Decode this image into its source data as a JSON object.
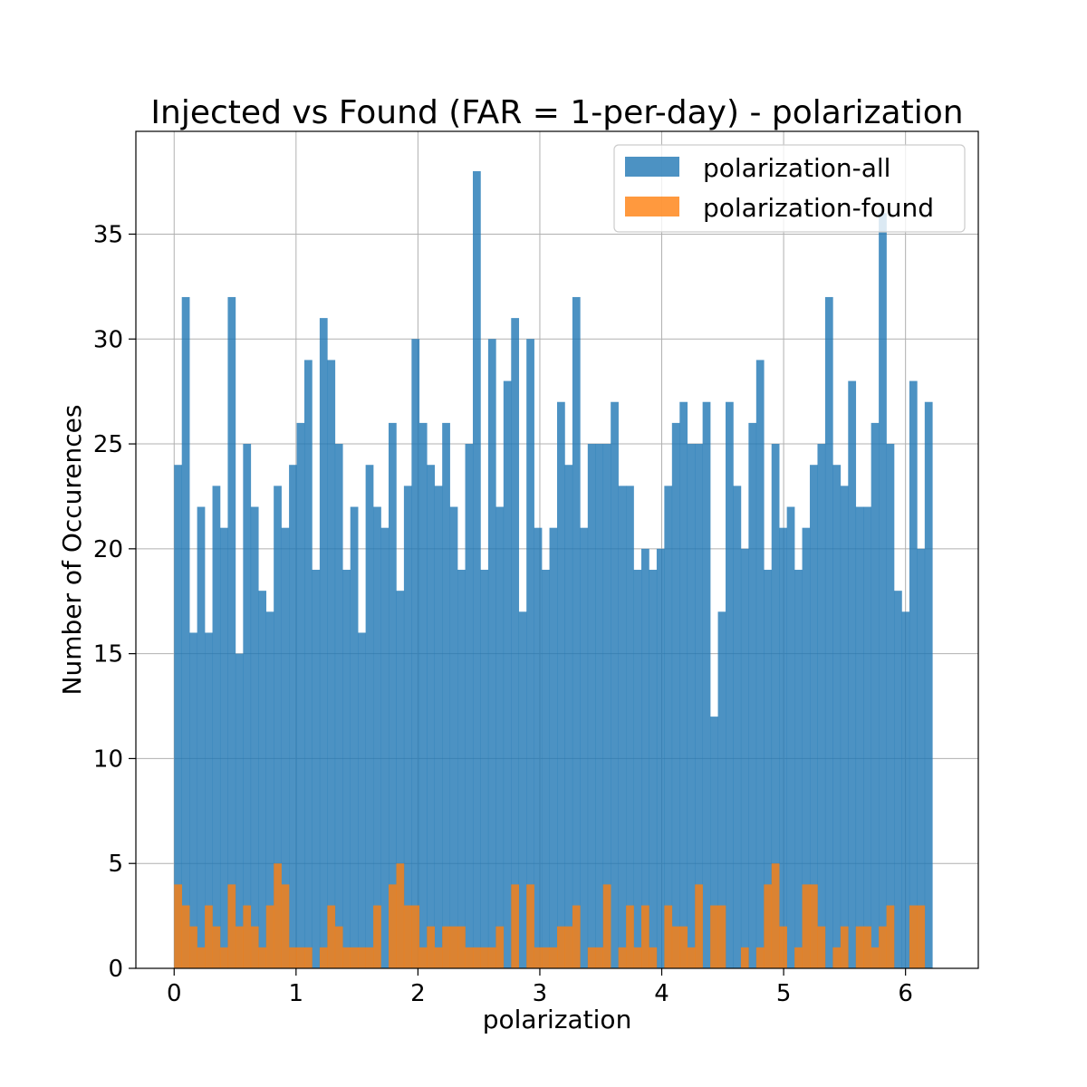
{
  "chart_data": {
    "type": "histogram",
    "title": "Injected vs Found (FAR = 1-per-day) - polarization",
    "xlabel": "polarization",
    "ylabel": "Number of Occurences",
    "xlim": [
      -0.314,
      6.597
    ],
    "ylim": [
      0,
      39.9
    ],
    "grid": true,
    "bin_start": 0,
    "bin_width": 0.06283,
    "xticks": [
      0,
      1,
      2,
      3,
      4,
      5,
      6
    ],
    "yticks": [
      0,
      5,
      10,
      15,
      20,
      25,
      30,
      35
    ],
    "legend": {
      "position": "top-right",
      "entries": [
        "polarization-all",
        "polarization-found"
      ]
    },
    "series": [
      {
        "name": "polarization-all",
        "color": "#1f77b4",
        "alpha": 0.8,
        "values": [
          24,
          32,
          16,
          22,
          16,
          23,
          21,
          32,
          15,
          25,
          22,
          18,
          17,
          23,
          21,
          24,
          26,
          29,
          19,
          31,
          29,
          25,
          19,
          22,
          16,
          24,
          22,
          21,
          26,
          18,
          23,
          30,
          26,
          24,
          23,
          26,
          22,
          19,
          25,
          38,
          19,
          30,
          22,
          28,
          31,
          17,
          30,
          21,
          19,
          21,
          27,
          24,
          32,
          21,
          25,
          25,
          25,
          27,
          23,
          23,
          19,
          20,
          19,
          20,
          23,
          26,
          27,
          25,
          25,
          27,
          12,
          17,
          27,
          23,
          20,
          26,
          29,
          19,
          25,
          21,
          22,
          19,
          21,
          24,
          25,
          32,
          24,
          23,
          28,
          22,
          22,
          26,
          36,
          25,
          18,
          17,
          28,
          20,
          27
        ]
      },
      {
        "name": "polarization-found",
        "color": "#ff7f0e",
        "alpha": 0.8,
        "values": [
          4,
          3,
          2,
          1,
          3,
          2,
          1,
          4,
          2,
          3,
          2,
          1,
          3,
          5,
          4,
          1,
          1,
          1,
          0,
          1,
          3,
          2,
          1,
          1,
          1,
          1,
          3,
          0,
          4,
          5,
          3,
          3,
          1,
          2,
          1,
          2,
          2,
          2,
          1,
          1,
          1,
          1,
          2,
          0,
          4,
          0,
          4,
          1,
          1,
          1,
          2,
          2,
          3,
          0,
          1,
          1,
          4,
          0,
          1,
          3,
          1,
          3,
          1,
          0,
          3,
          2,
          2,
          1,
          4,
          0,
          3,
          3,
          0,
          0,
          1,
          0,
          1,
          4,
          5,
          2,
          0,
          1,
          4,
          4,
          2,
          0,
          1,
          2,
          0,
          2,
          2,
          1,
          2,
          3,
          0,
          0,
          3,
          3,
          0
        ]
      }
    ]
  }
}
